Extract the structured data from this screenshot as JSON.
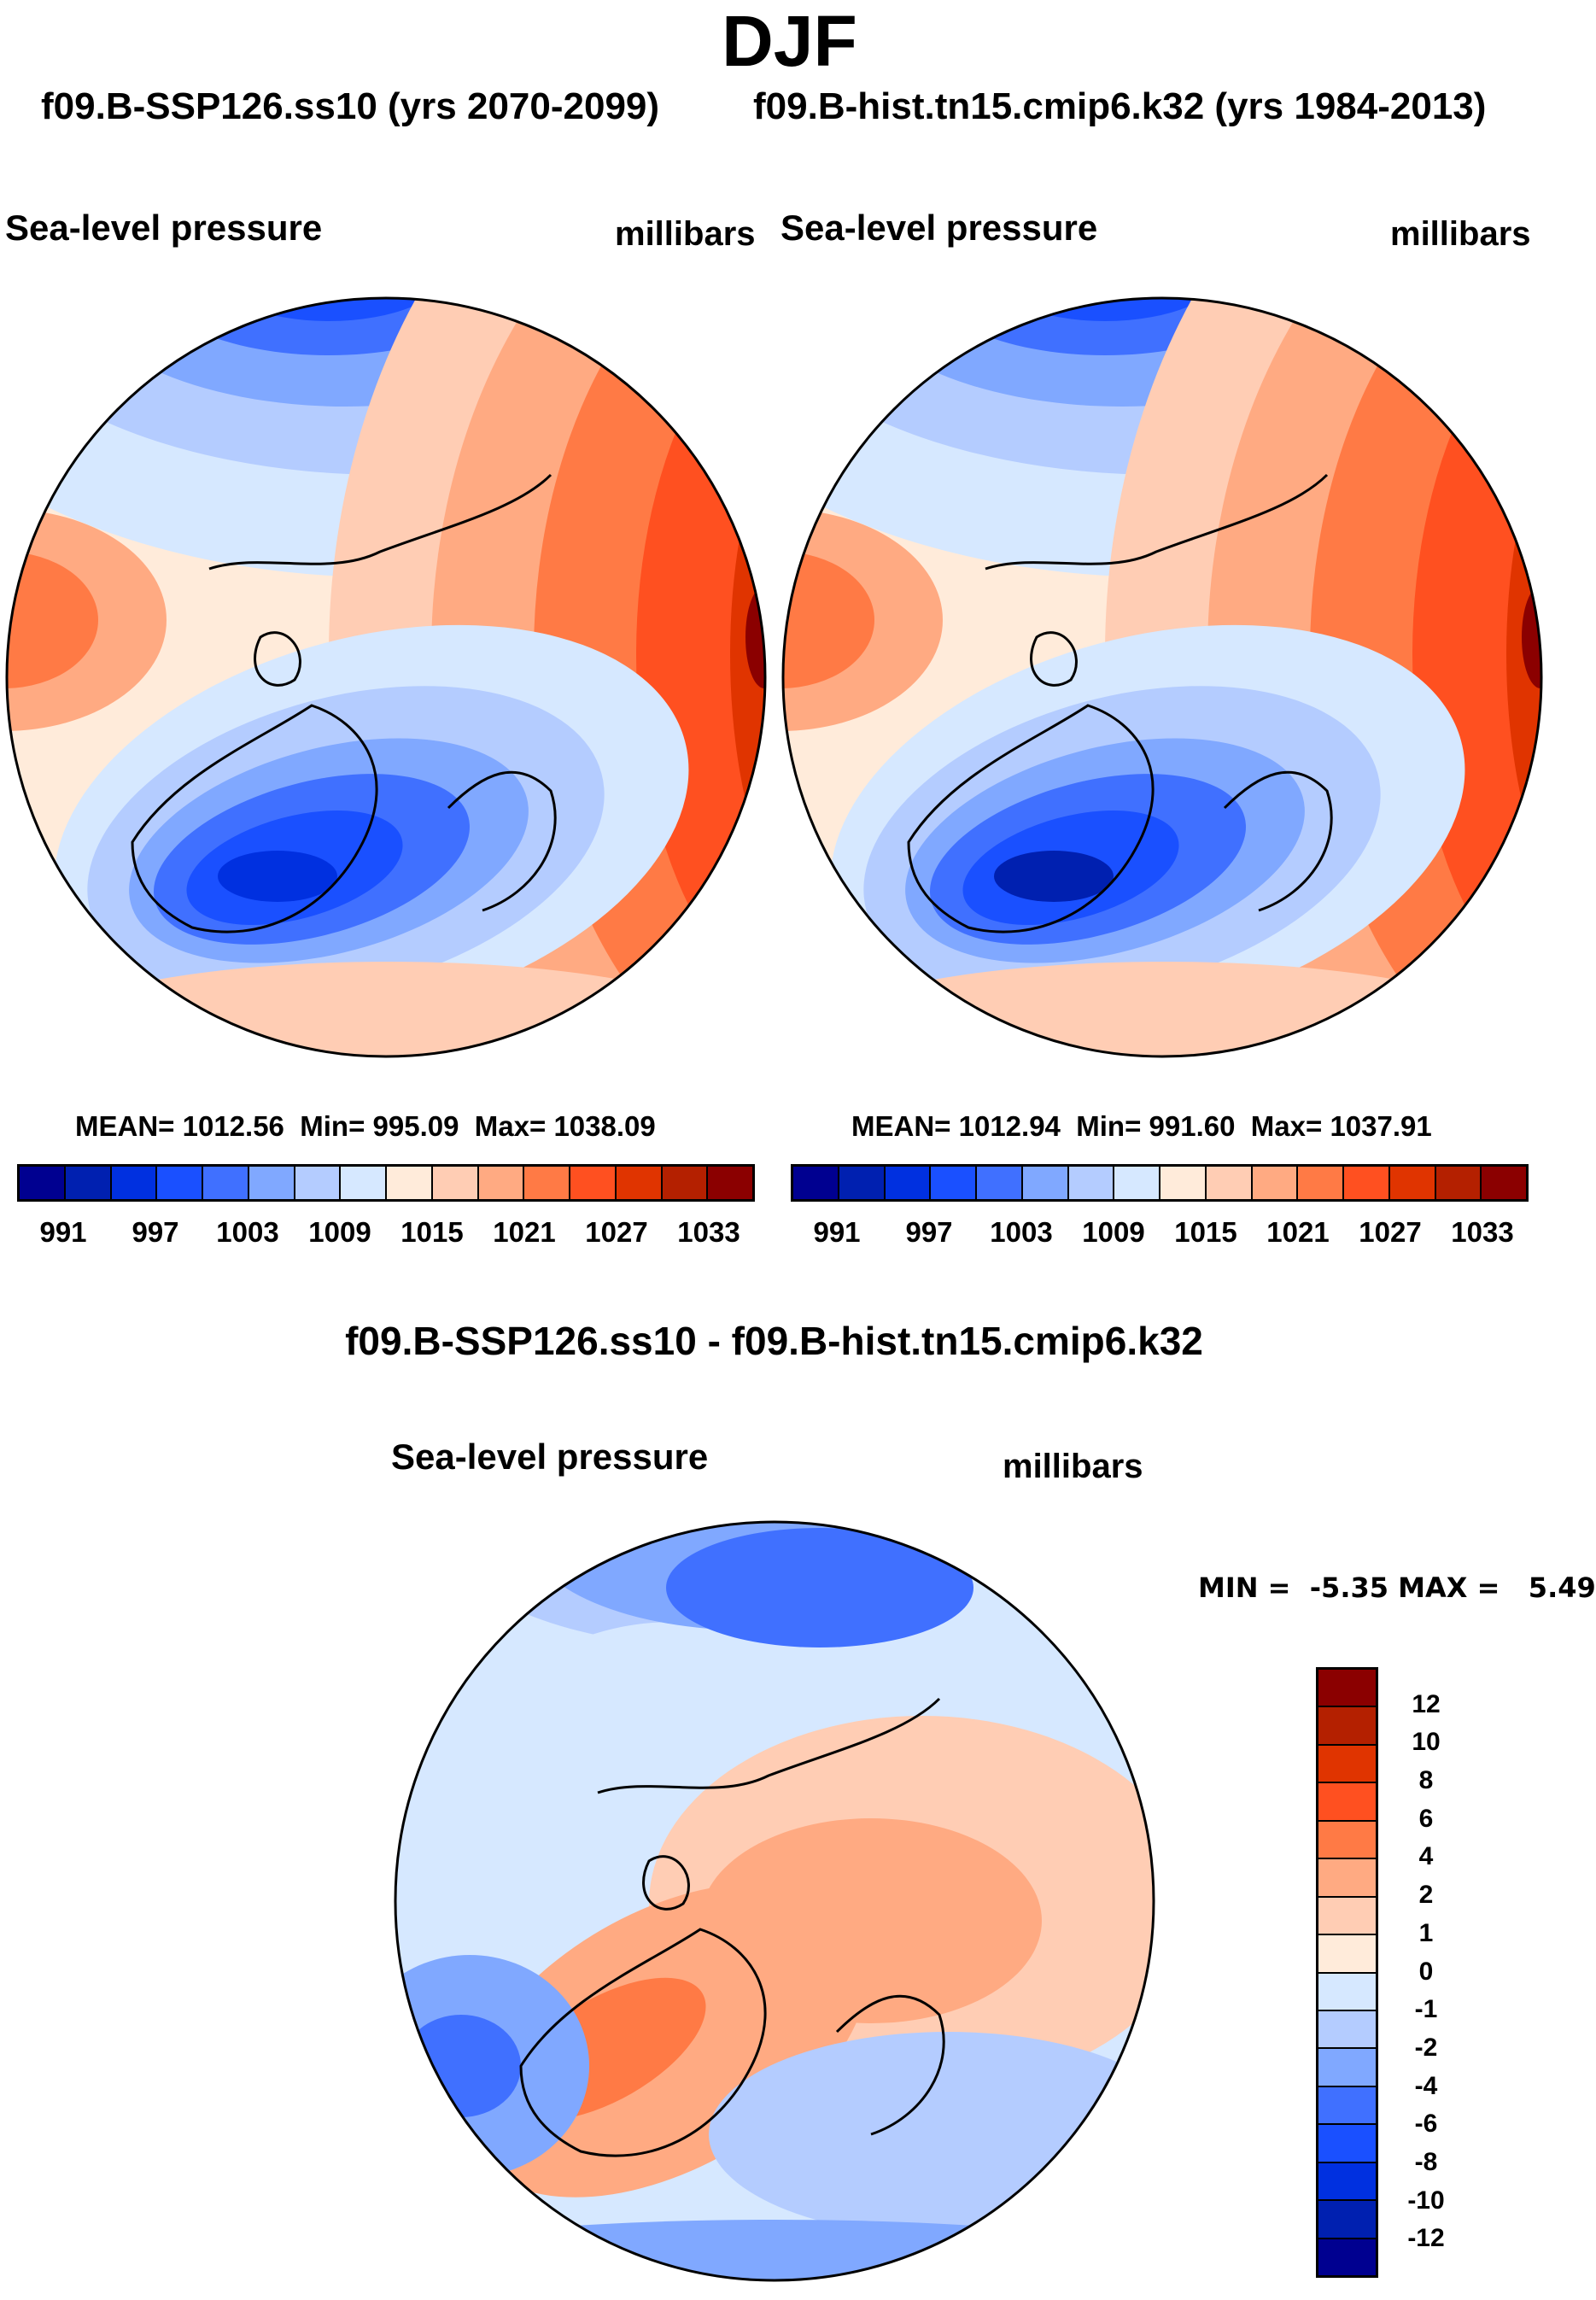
{
  "chart_data": [
    {
      "type": "heatmap",
      "projection": "north-polar-stereographic",
      "season": "DJF",
      "case": "f09.B-SSP126.ss10 (yrs 2070-2099)",
      "variable": "Sea-level pressure",
      "units": "millibars",
      "mean": "1012.56",
      "min": "995.09",
      "max": "1038.09",
      "levels": [
        "991",
        "997",
        "1003",
        "1009",
        "1015",
        "1021",
        "1027",
        "1033"
      ]
    },
    {
      "type": "heatmap",
      "projection": "north-polar-stereographic",
      "season": "DJF",
      "case": "f09.B-hist.tn15.cmip6.k32 (yrs 1984-2013)",
      "variable": "Sea-level pressure",
      "units": "millibars",
      "mean": "1012.94",
      "min": "991.60",
      "max": "1037.91",
      "levels": [
        "991",
        "997",
        "1003",
        "1009",
        "1015",
        "1021",
        "1027",
        "1033"
      ]
    },
    {
      "type": "heatmap",
      "projection": "north-polar-stereographic",
      "title": "f09.B-SSP126.ss10 - f09.B-hist.tn15.cmip6.k32",
      "variable": "Sea-level pressure",
      "units": "millibars",
      "min": "-5.35",
      "max": "5.49",
      "levels": [
        "12",
        "10",
        "8",
        "6",
        "4",
        "2",
        "1",
        "0",
        "-1",
        "-2",
        "-4",
        "-6",
        "-8",
        "-10",
        "-12"
      ]
    }
  ],
  "title": "DJF",
  "labels": {
    "mean": "MEAN=",
    "min": "Min=",
    "max": "Max=",
    "dmin": "MIN =",
    "dmax": "MAX ="
  },
  "colors": [
    "#000090",
    "#0020b0",
    "#0030e0",
    "#1a50ff",
    "#4070ff",
    "#80a8ff",
    "#b4ccff",
    "#d6e8ff",
    "#ffebda",
    "#ffcdb4",
    "#ffaa82",
    "#ff7a45",
    "#ff5020",
    "#e03400",
    "#b42000",
    "#8b0000"
  ]
}
